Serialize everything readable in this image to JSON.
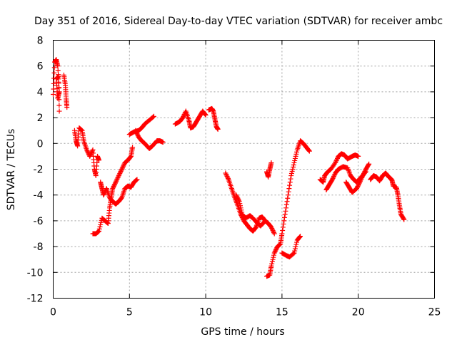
{
  "chart_data": {
    "type": "scatter",
    "title": "Day 351 of 2016, Sidereal Day-to-day VTEC variation (SDTVAR) for receiver ambc",
    "xlabel": "GPS time / hours",
    "ylabel": "SDTVAR / TECUs",
    "xlim": [
      0,
      25
    ],
    "ylim": [
      -12,
      8
    ],
    "xticks": [
      0,
      5,
      10,
      15,
      20,
      25
    ],
    "yticks": [
      -12,
      -10,
      -8,
      -6,
      -4,
      -2,
      0,
      2,
      4,
      6,
      8
    ],
    "grid": true,
    "marker": "plus",
    "color": "#ff0000",
    "segments": [
      [
        [
          0.0,
          3.8
        ],
        [
          0.1,
          6.3
        ],
        [
          0.2,
          6.5
        ],
        [
          0.3,
          6.0
        ],
        [
          0.4,
          4.0
        ],
        [
          0.3,
          3.5
        ],
        [
          0.2,
          5.0
        ],
        [
          0.35,
          5.2
        ],
        [
          0.4,
          2.5
        ]
      ],
      [
        [
          0.7,
          5.3
        ],
        [
          0.8,
          4.5
        ],
        [
          0.85,
          3.5
        ],
        [
          0.9,
          2.8
        ]
      ],
      [
        [
          1.4,
          1.0
        ],
        [
          1.5,
          0.2
        ],
        [
          1.6,
          -0.2
        ],
        [
          1.7,
          1.2
        ],
        [
          1.9,
          1.0
        ],
        [
          2.0,
          0.2
        ],
        [
          2.2,
          -0.5
        ],
        [
          2.4,
          -1.0
        ],
        [
          2.6,
          -0.5
        ],
        [
          2.7,
          -2.0
        ],
        [
          2.8,
          -2.5
        ],
        [
          2.9,
          -1.0
        ],
        [
          3.0,
          -1.3
        ]
      ],
      [
        [
          3.1,
          -3.0
        ],
        [
          3.2,
          -3.5
        ],
        [
          3.3,
          -4.0
        ],
        [
          3.5,
          -3.5
        ],
        [
          3.7,
          -4.2
        ],
        [
          3.9,
          -4.5
        ],
        [
          4.1,
          -4.7
        ],
        [
          4.3,
          -4.5
        ],
        [
          4.5,
          -4.2
        ],
        [
          4.7,
          -3.5
        ],
        [
          4.9,
          -3.3
        ],
        [
          5.1,
          -3.4
        ],
        [
          5.3,
          -3.0
        ],
        [
          5.5,
          -2.8
        ]
      ],
      [
        [
          2.6,
          -7.0
        ],
        [
          2.8,
          -7.0
        ],
        [
          3.0,
          -6.8
        ],
        [
          3.2,
          -5.8
        ],
        [
          3.4,
          -6.0
        ],
        [
          3.6,
          -6.2
        ],
        [
          3.7,
          -5.0
        ],
        [
          3.8,
          -4.2
        ],
        [
          3.9,
          -3.5
        ],
        [
          4.1,
          -3.0
        ],
        [
          4.3,
          -2.5
        ],
        [
          4.5,
          -2.0
        ],
        [
          4.7,
          -1.5
        ],
        [
          4.9,
          -1.3
        ],
        [
          5.1,
          -1.0
        ],
        [
          5.2,
          -0.3
        ]
      ],
      [
        [
          5.0,
          0.7
        ],
        [
          5.3,
          0.9
        ],
        [
          5.6,
          1.0
        ],
        [
          5.8,
          1.2
        ],
        [
          6.0,
          1.5
        ],
        [
          6.3,
          1.8
        ],
        [
          6.6,
          2.1
        ]
      ],
      [
        [
          5.4,
          1.0
        ],
        [
          5.6,
          0.5
        ],
        [
          5.8,
          0.2
        ],
        [
          6.0,
          0.0
        ],
        [
          6.3,
          -0.4
        ],
        [
          6.5,
          -0.2
        ],
        [
          6.8,
          0.2
        ],
        [
          7.0,
          0.2
        ],
        [
          7.2,
          0.1
        ]
      ],
      [
        [
          8.0,
          1.5
        ],
        [
          8.3,
          1.7
        ],
        [
          8.5,
          2.0
        ],
        [
          8.7,
          2.5
        ],
        [
          8.9,
          1.8
        ],
        [
          9.0,
          1.2
        ],
        [
          9.2,
          1.3
        ],
        [
          9.4,
          1.7
        ],
        [
          9.6,
          2.1
        ],
        [
          9.8,
          2.5
        ],
        [
          10.0,
          2.2
        ]
      ],
      [
        [
          10.2,
          2.6
        ],
        [
          10.4,
          2.7
        ],
        [
          10.5,
          2.5
        ],
        [
          10.6,
          1.9
        ],
        [
          10.7,
          1.3
        ],
        [
          10.8,
          1.1
        ]
      ],
      [
        [
          11.3,
          -2.3
        ],
        [
          11.5,
          -2.8
        ],
        [
          11.7,
          -3.5
        ],
        [
          11.9,
          -4.2
        ],
        [
          12.1,
          -4.8
        ],
        [
          12.3,
          -5.5
        ],
        [
          12.5,
          -6.0
        ],
        [
          12.7,
          -6.3
        ],
        [
          12.9,
          -6.6
        ],
        [
          13.1,
          -6.8
        ],
        [
          13.3,
          -6.5
        ],
        [
          13.5,
          -5.8
        ],
        [
          13.7,
          -5.7
        ],
        [
          13.9,
          -6.0
        ]
      ],
      [
        [
          12.0,
          -4.0
        ],
        [
          12.2,
          -4.5
        ],
        [
          12.4,
          -5.5
        ],
        [
          12.6,
          -5.8
        ],
        [
          12.9,
          -5.6
        ],
        [
          13.1,
          -5.8
        ],
        [
          13.4,
          -6.2
        ],
        [
          13.6,
          -6.4
        ],
        [
          13.9,
          -6.0
        ],
        [
          14.1,
          -6.2
        ],
        [
          14.3,
          -6.5
        ],
        [
          14.5,
          -7.0
        ]
      ],
      [
        [
          14.0,
          -2.2
        ],
        [
          14.1,
          -2.6
        ],
        [
          14.2,
          -2.0
        ],
        [
          14.3,
          -1.5
        ]
      ],
      [
        [
          14.0,
          -10.3
        ],
        [
          14.2,
          -10.2
        ],
        [
          14.3,
          -9.5
        ],
        [
          14.5,
          -8.5
        ],
        [
          14.7,
          -8.0
        ],
        [
          14.9,
          -7.8
        ],
        [
          15.0,
          -7.0
        ],
        [
          15.2,
          -5.5
        ],
        [
          15.4,
          -4.0
        ],
        [
          15.6,
          -2.5
        ],
        [
          15.8,
          -1.5
        ],
        [
          16.0,
          -0.5
        ],
        [
          16.2,
          0.2
        ],
        [
          16.4,
          0.0
        ],
        [
          16.6,
          -0.3
        ],
        [
          16.8,
          -0.6
        ]
      ],
      [
        [
          15.0,
          -8.5
        ],
        [
          15.3,
          -8.7
        ],
        [
          15.5,
          -8.8
        ],
        [
          15.8,
          -8.5
        ],
        [
          16.0,
          -7.5
        ],
        [
          16.2,
          -7.2
        ]
      ],
      [
        [
          17.5,
          -2.8
        ],
        [
          17.7,
          -3.0
        ],
        [
          17.8,
          -2.5
        ],
        [
          18.0,
          -2.2
        ],
        [
          18.2,
          -2.0
        ],
        [
          18.5,
          -1.5
        ],
        [
          18.7,
          -1.0
        ],
        [
          18.9,
          -0.8
        ],
        [
          19.1,
          -0.9
        ],
        [
          19.3,
          -1.2
        ],
        [
          19.6,
          -1.0
        ],
        [
          19.8,
          -0.9
        ],
        [
          20.0,
          -1.0
        ]
      ],
      [
        [
          17.9,
          -3.6
        ],
        [
          18.1,
          -3.2
        ],
        [
          18.3,
          -2.8
        ],
        [
          18.5,
          -2.3
        ],
        [
          18.7,
          -2.0
        ],
        [
          19.0,
          -1.8
        ],
        [
          19.3,
          -1.9
        ],
        [
          19.5,
          -2.5
        ],
        [
          19.7,
          -2.8
        ],
        [
          19.9,
          -3.0
        ],
        [
          20.2,
          -2.6
        ],
        [
          20.5,
          -2.2
        ]
      ],
      [
        [
          19.2,
          -3.0
        ],
        [
          19.4,
          -3.4
        ],
        [
          19.6,
          -3.8
        ],
        [
          19.9,
          -3.5
        ],
        [
          20.1,
          -3.0
        ],
        [
          20.3,
          -2.5
        ],
        [
          20.5,
          -2.0
        ],
        [
          20.7,
          -1.6
        ]
      ],
      [
        [
          20.8,
          -2.8
        ],
        [
          21.0,
          -2.5
        ],
        [
          21.2,
          -2.6
        ],
        [
          21.4,
          -2.9
        ],
        [
          21.6,
          -2.5
        ],
        [
          21.8,
          -2.3
        ],
        [
          22.0,
          -2.6
        ],
        [
          22.2,
          -2.8
        ],
        [
          22.3,
          -3.3
        ],
        [
          22.5,
          -3.4
        ],
        [
          22.6,
          -4.0
        ],
        [
          22.7,
          -4.8
        ],
        [
          22.8,
          -5.5
        ],
        [
          23.0,
          -5.9
        ]
      ]
    ]
  }
}
